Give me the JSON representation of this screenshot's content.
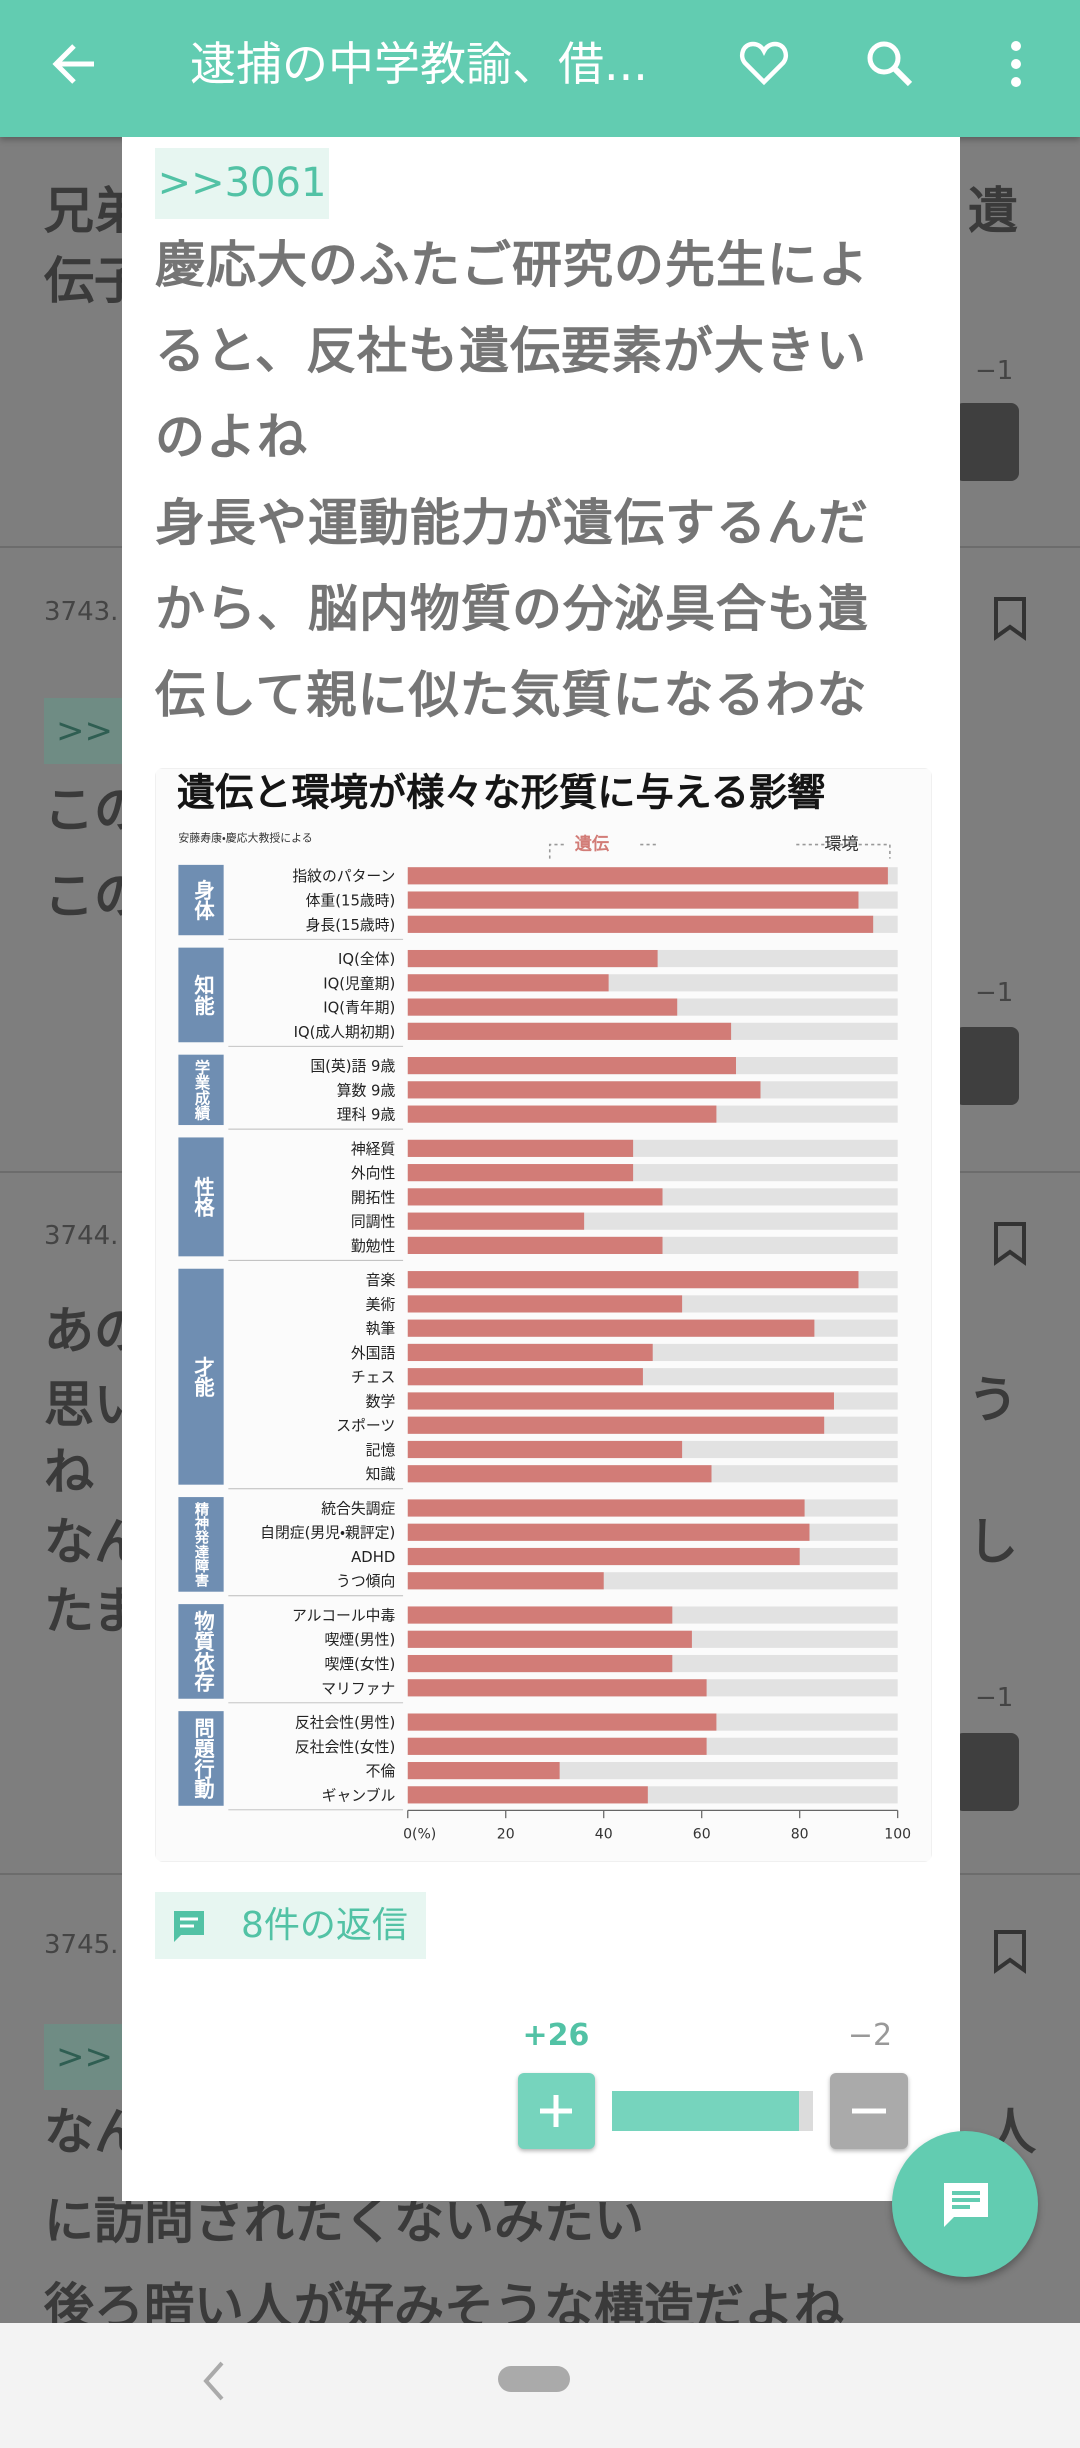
{
  "app_bar": {
    "title": "逮捕の中学教諭、借..."
  },
  "background": {
    "texts": [
      "兄弟",
      "伝子",
      "遺",
      "−1",
      "3743.",
      ">>",
      "この",
      "この",
      "−1",
      "3744.",
      "あの",
      "思い",
      "ね",
      "なん",
      "たま",
      "う",
      "し",
      "−1",
      "3745.",
      ">>",
      "なん",
      "人",
      "に訪問されたくないみたい",
      "後ろ暗い人が好みそうな構造だよね"
    ]
  },
  "post": {
    "reply_to": ">>3061",
    "lines": [
      "慶応大のふたご研究の先生によ",
      "ると、反社も遺伝要素が大きい",
      "のよね",
      "身長や運動能力が遺伝するんだ",
      "から、脳内物質の分泌具合も遺",
      "伝して親に似た気質になるわな"
    ],
    "replies": "8件の返信",
    "votes": {
      "up": {
        "value": 26,
        "label": "+26"
      },
      "down": {
        "value": -2,
        "label": "−2"
      }
    }
  },
  "chart_data": {
    "type": "bar",
    "orientation": "horizontal",
    "title": "遺伝と環境が様々な形質に与える影響",
    "subtitle": "安藤寿康・慶応大教授による",
    "series_name": "遺伝",
    "color": "#d27c77",
    "environment_label": "環境",
    "environment_color": "#e2e2e2",
    "group_color": "#6f8eb2",
    "groups": [
      {
        "label": "身体",
        "categories": [
          "指紋のパターン",
          "体重(15歳時)",
          "身長(15歳時)"
        ],
        "values": [
          98,
          92,
          95
        ]
      },
      {
        "label": "知能",
        "categories": [
          "IQ(全体)",
          "IQ(児童期)",
          "IQ(青年期)",
          "IQ(成人期初期)"
        ],
        "values": [
          51,
          41,
          55,
          66
        ]
      },
      {
        "label": "学業成績",
        "categories": [
          "国(英)語 9歳",
          "算数 9歳",
          "理科 9歳"
        ],
        "values": [
          67,
          72,
          63
        ]
      },
      {
        "label": "性格",
        "categories": [
          "神経質",
          "外向性",
          "開拓性",
          "同調性",
          "勤勉性"
        ],
        "values": [
          46,
          46,
          52,
          36,
          52
        ]
      },
      {
        "label": "才能",
        "categories": [
          "音楽",
          "美術",
          "執筆",
          "外国語",
          "チェス",
          "数学",
          "スポーツ",
          "記憶",
          "知識"
        ],
        "values": [
          92,
          56,
          83,
          50,
          48,
          87,
          85,
          56,
          62
        ]
      },
      {
        "label": "精神発達障害",
        "categories": [
          "統合失調症",
          "自閉症(男児・親評定)",
          "ADHD",
          "うつ傾向"
        ],
        "values": [
          81,
          82,
          80,
          40
        ]
      },
      {
        "label": "物質依存",
        "categories": [
          "アルコール中毒",
          "喫煙(男性)",
          "喫煙(女性)",
          "マリファナ"
        ],
        "values": [
          54,
          58,
          54,
          61
        ]
      },
      {
        "label": "問題行動",
        "categories": [
          "反社会性(男性)",
          "反社会性(女性)",
          "不倫",
          "ギャンブル"
        ],
        "values": [
          63,
          61,
          31,
          49
        ]
      }
    ],
    "xlim": [
      0,
      100
    ],
    "xticks": [
      {
        "value": 0,
        "label": "0(%)"
      },
      20,
      40,
      60,
      80,
      100
    ]
  }
}
